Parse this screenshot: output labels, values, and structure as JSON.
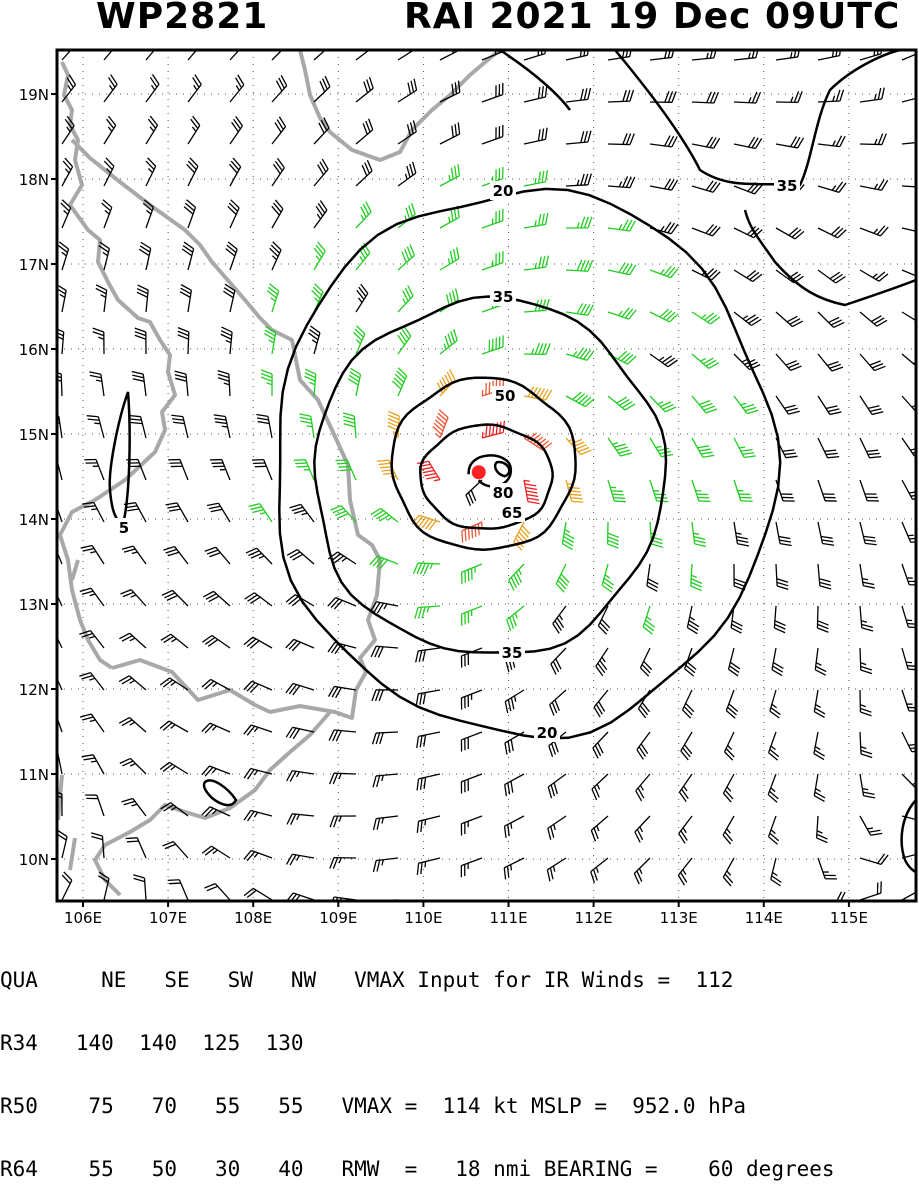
{
  "header": {
    "storm_id": "WP2821",
    "storm_label": "RAI 2021 19 Dec 09UTC"
  },
  "map": {
    "lon_labels": [
      "106E",
      "107E",
      "108E",
      "109E",
      "110E",
      "111E",
      "112E",
      "113E",
      "114E",
      "115E"
    ],
    "lat_labels": [
      "19N",
      "18N",
      "17N",
      "16N",
      "15N",
      "14N",
      "13N",
      "12N",
      "11N",
      "10N"
    ],
    "contour_labels": [
      "20",
      "35",
      "50",
      "65",
      "80",
      "35",
      "20",
      "35",
      "5"
    ],
    "center": {
      "lon": 110.65,
      "lat": 14.55
    },
    "max_wind_kt": 114,
    "rmw_nmi": 18,
    "colors": {
      "black": "#000000",
      "green": "#22cc22",
      "orange": "#e8a020",
      "red_orange": "#ee5533",
      "red": "#ee2222",
      "coast": "#a8a8a8",
      "center": "#ff2222"
    }
  },
  "table": {
    "headers": [
      "QUA",
      "NE",
      "SE",
      "SW",
      "NW"
    ],
    "rows": [
      {
        "label": "R34",
        "ne": "140",
        "se": "140",
        "sw": "125",
        "nw": "130"
      },
      {
        "label": "R50",
        "ne": "75",
        "se": "70",
        "sw": "55",
        "nw": "55"
      },
      {
        "label": "R64",
        "ne": "55",
        "se": "50",
        "sw": "30",
        "nw": "40"
      }
    ],
    "vmax_input": "VMAX Input for IR Winds =  112",
    "vmax_line": "VMAX =  114 kt MSLP =  952.0 hPa",
    "rmw_line": "RMW  =   18 nmi BEARING =    60 degrees"
  }
}
